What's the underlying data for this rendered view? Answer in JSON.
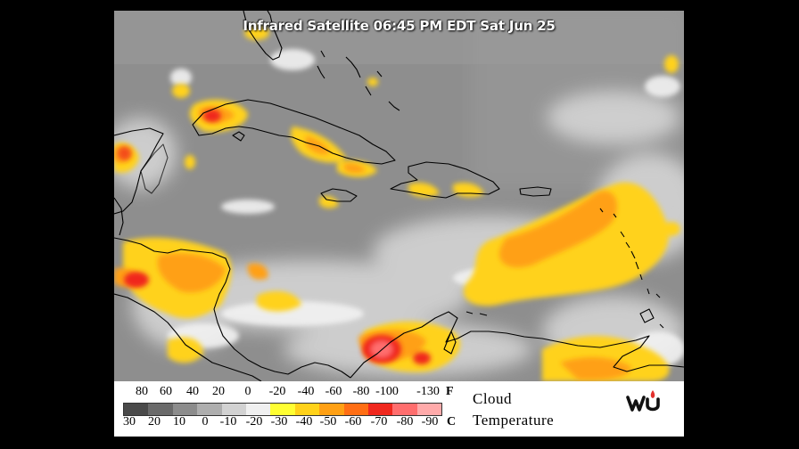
{
  "title": "Infrared Satellite 06:45 PM EDT Sat Jun 25",
  "legend": {
    "fahrenheit_ticks": [
      "80",
      "60",
      "40",
      "20",
      "0",
      "-20",
      "-40",
      "-60",
      "-80",
      "-100",
      "-130"
    ],
    "fahrenheit_unit": "F",
    "celsius_ticks": [
      "30",
      "20",
      "10",
      "0",
      "-10",
      "-20",
      "-30",
      "-40",
      "-50",
      "-60",
      "-70",
      "-80",
      "-90"
    ],
    "celsius_unit": "C",
    "label_line1": "Cloud",
    "label_line2": "Temperature",
    "colorbar_colors": [
      "#4a4a4a",
      "#6a6a6a",
      "#8c8c8c",
      "#aeaeae",
      "#d2d2d2",
      "#f0f0f0",
      "#ffff33",
      "#ffd21a",
      "#ffa014",
      "#ff6e14",
      "#f0281e",
      "#ff6e6e",
      "#ffaaaa"
    ]
  },
  "logo_icon": "wu-logo-icon",
  "colors": {
    "background_cloudfree": "#8c8c8c",
    "coastline": "#000000"
  }
}
